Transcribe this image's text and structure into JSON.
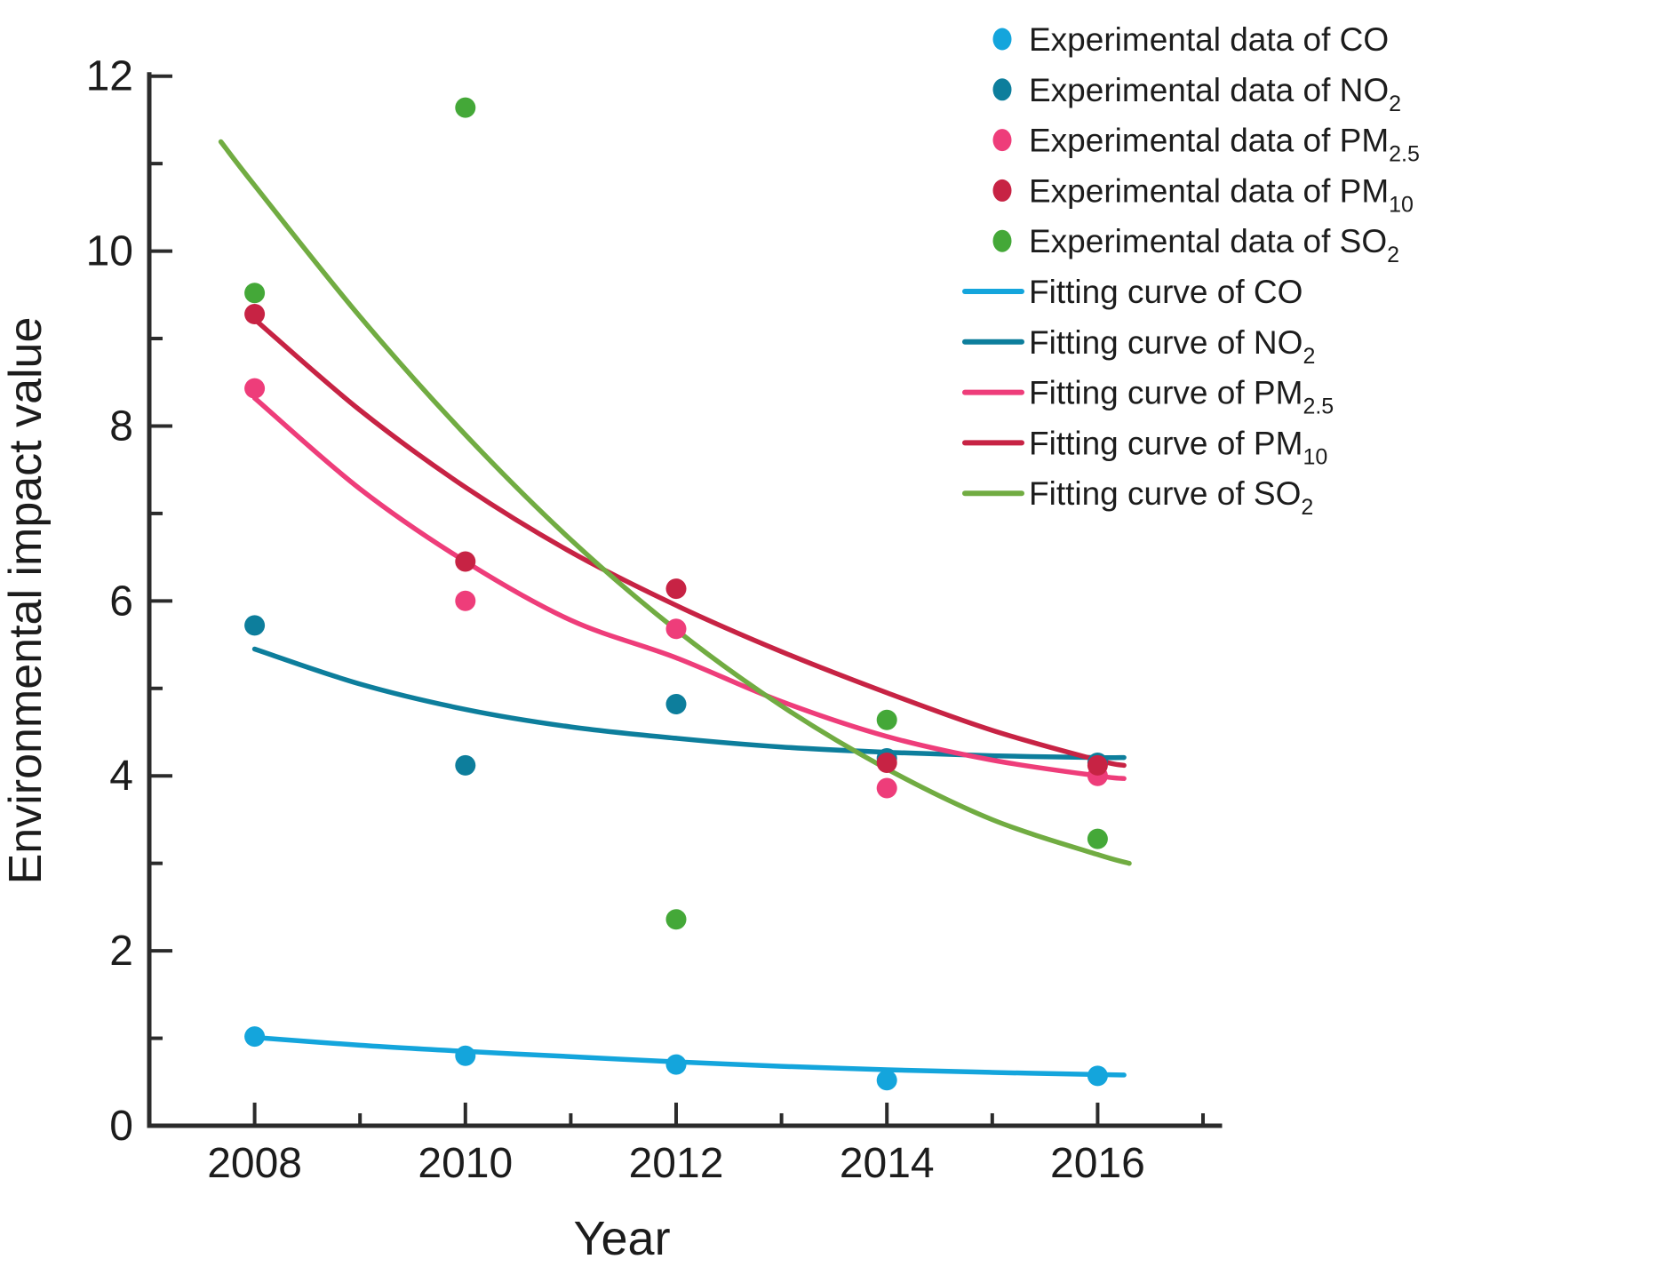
{
  "chart_data": {
    "type": "scatter",
    "title": "",
    "xlabel": "Year",
    "ylabel": "Environmental impact value",
    "xlim": [
      2007,
      2017.16
    ],
    "ylim": [
      0,
      12.2
    ],
    "grid": false,
    "legend_position": "top-right",
    "xticks_major": [
      2008,
      2010,
      2012,
      2014,
      2016
    ],
    "xticks_minor": [
      2009,
      2011,
      2013,
      2015,
      2017
    ],
    "yticks_major": [
      0,
      2,
      4,
      6,
      8,
      10,
      12
    ],
    "yticks_minor": [
      1,
      3,
      5,
      7,
      9,
      11
    ],
    "axis_color": "#2b2b2b",
    "series": [
      {
        "name": "Experimental data of CO",
        "legend_text": "Experimental data of CO",
        "legend_sub": "",
        "kind": "scatter",
        "color": "#14a5dc",
        "x": [
          2008,
          2010,
          2012,
          2014,
          2016
        ],
        "y": [
          1.02,
          0.8,
          0.7,
          0.52,
          0.57
        ]
      },
      {
        "name": "Experimental data of NO2",
        "legend_text": "Experimental data of NO",
        "legend_sub": "2",
        "kind": "scatter",
        "color": "#0d7e9c",
        "x": [
          2008,
          2010,
          2012,
          2014,
          2016
        ],
        "y": [
          5.72,
          4.12,
          4.82,
          4.2,
          4.15
        ]
      },
      {
        "name": "Experimental data of PM2.5",
        "legend_text": "Experimental data of PM",
        "legend_sub": "2.5",
        "kind": "scatter",
        "color": "#ee3d7a",
        "x": [
          2008,
          2010,
          2012,
          2014,
          2016
        ],
        "y": [
          8.43,
          6.0,
          5.68,
          3.86,
          4.0
        ]
      },
      {
        "name": "Experimental data of PM10",
        "legend_text": "Experimental data of PM",
        "legend_sub": "10",
        "kind": "scatter",
        "color": "#c72344",
        "x": [
          2008,
          2010,
          2012,
          2014,
          2016
        ],
        "y": [
          9.28,
          6.45,
          6.14,
          4.15,
          4.12
        ]
      },
      {
        "name": "Experimental data of SO2",
        "legend_text": "Experimental data of SO",
        "legend_sub": "2",
        "kind": "scatter",
        "color": "#44a838",
        "x": [
          2008,
          2010,
          2012,
          2014,
          2016
        ],
        "y": [
          9.52,
          11.64,
          2.36,
          4.64,
          3.28
        ]
      }
    ],
    "curves": [
      {
        "name": "Fitting curve of CO",
        "legend_text": "Fitting curve of CO",
        "legend_sub": "",
        "kind": "line",
        "color": "#14a5dc",
        "x": [
          2008,
          2009,
          2010,
          2011,
          2012,
          2013,
          2014,
          2015,
          2016,
          2016.25
        ],
        "y": [
          1.01,
          0.92,
          0.85,
          0.79,
          0.73,
          0.68,
          0.64,
          0.61,
          0.585,
          0.58
        ]
      },
      {
        "name": "Fitting curve of NO2",
        "legend_text": "Fitting curve of NO",
        "legend_sub": "2",
        "kind": "line",
        "color": "#0d7e9c",
        "x": [
          2008,
          2009,
          2010,
          2011,
          2012,
          2013,
          2014,
          2015,
          2016,
          2016.25
        ],
        "y": [
          5.45,
          5.05,
          4.76,
          4.56,
          4.43,
          4.33,
          4.27,
          4.23,
          4.21,
          4.21
        ]
      },
      {
        "name": "Fitting curve of PM2.5",
        "legend_text": "Fitting curve of PM",
        "legend_sub": "2.5",
        "kind": "line",
        "color": "#ee3d7a",
        "x": [
          2008,
          2009,
          2010,
          2011,
          2012,
          2013,
          2014,
          2015,
          2016,
          2016.25
        ],
        "y": [
          8.32,
          7.28,
          6.45,
          5.78,
          5.35,
          4.85,
          4.45,
          4.18,
          4.0,
          3.97
        ]
      },
      {
        "name": "Fitting curve of PM10",
        "legend_text": "Fitting curve of PM",
        "legend_sub": "10",
        "kind": "line",
        "color": "#c72344",
        "x": [
          2008,
          2009,
          2010,
          2011,
          2012,
          2013,
          2014,
          2015,
          2016,
          2016.25
        ],
        "y": [
          9.22,
          8.18,
          7.3,
          6.56,
          5.95,
          5.42,
          4.95,
          4.52,
          4.18,
          4.12
        ]
      },
      {
        "name": "Fitting curve of SO2",
        "legend_text": "Fitting curve of SO",
        "legend_sub": "2",
        "kind": "line",
        "color": "#71ac42",
        "x": [
          2007.68,
          2008,
          2009,
          2010,
          2011,
          2012,
          2013,
          2014,
          2015,
          2016,
          2016.3
        ],
        "y": [
          11.25,
          10.75,
          9.25,
          7.9,
          6.7,
          5.67,
          4.8,
          4.08,
          3.5,
          3.1,
          3.0
        ]
      }
    ]
  }
}
